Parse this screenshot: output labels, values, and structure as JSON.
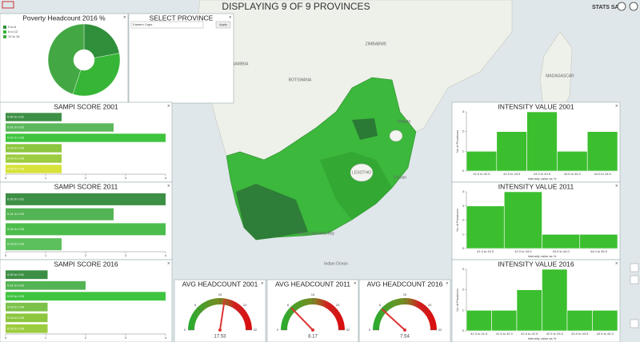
{
  "header": {
    "title": "DISPLAYING 9 OF 9 PROVINCES",
    "logo": "STATS SA"
  },
  "map": {
    "labels": [
      "BOTSWANA",
      "ZIMBABWE",
      "NAMIBIA",
      "LESOTHO",
      "MADAGASCAR",
      "Indian Ocean",
      "Durban",
      "Nelson Mandela Bay",
      "Maputo"
    ]
  },
  "donut": {
    "type": "pie",
    "title": "Poverty Headcount 2016 %",
    "legend": [
      "0 to 6",
      "6 to 12",
      "12 to 14"
    ],
    "values": [
      22,
      33,
      45
    ],
    "colors": [
      "#2f8f3a",
      "#36b536",
      "#43a843"
    ]
  },
  "select": {
    "title": "SELECT PROVINCE",
    "selected": "Eastern Cape",
    "button": "Apply"
  },
  "sampi": [
    {
      "type": "bar",
      "title": "SAMPI SCORE 2001",
      "categories": [
        "0.00 to 0.01",
        "0.01 to 0.02",
        "0.02 to 0.03",
        "0.03 to 0.04",
        "0.04 to 0.05",
        "0.05 to 0.06"
      ],
      "values": [
        1.4,
        2.7,
        4,
        1.4,
        1.4,
        1.4
      ],
      "colors": [
        "#3d8f45",
        "#5cb85c",
        "#3fc43f",
        "#8cc63f",
        "#9ccc3f",
        "#d7e23a"
      ],
      "xlim": [
        0,
        4
      ],
      "xticks": [
        0,
        1,
        2,
        3,
        4
      ]
    },
    {
      "type": "bar",
      "title": "SAMPI SCORE 2011",
      "categories": [
        "0.00 to 0.01",
        "0.01 to 0.02",
        "0.02 to 0.03",
        "0.03 to 0.04"
      ],
      "values": [
        4,
        2.7,
        4,
        1.4
      ],
      "colors": [
        "#3d8f45",
        "#53b453",
        "#4cbc4c",
        "#5cc15c"
      ],
      "xlim": [
        0,
        4
      ],
      "xticks": [
        0,
        1,
        2,
        3,
        4
      ]
    },
    {
      "type": "bar",
      "title": "SAMPI SCORE 2016",
      "categories": [
        "0.00 to 0.01",
        "0.01 to 0.02",
        "0.02 to 0.03",
        "0.03 to 0.04",
        "0.04 to 0.05",
        "0.05 to 0.06"
      ],
      "values": [
        1.05,
        2,
        4,
        1.05,
        1.05,
        1.05
      ],
      "colors": [
        "#3d8f45",
        "#53b453",
        "#3fc43f",
        "#7cc24a",
        "#8cc63f",
        "#9ccc3f"
      ],
      "xlim": [
        0,
        4
      ],
      "xticks": [
        0,
        1,
        2,
        3,
        4
      ]
    }
  ],
  "intensity": [
    {
      "type": "histogram",
      "title": "INTENSITY VALUE 2001",
      "ylabel": "No of Provinces",
      "xlabel": "Intensity value as %",
      "categories": [
        "42.0 to 42.5",
        "42.5 to 43.0",
        "43.0 to 43.5",
        "43.5 to 44.0",
        "44.0 to 44.5"
      ],
      "values": [
        1,
        2,
        3,
        1,
        2
      ],
      "color": "#3cbf2f",
      "ylim": [
        0,
        3
      ],
      "yticks": [
        0,
        1,
        2,
        3
      ]
    },
    {
      "type": "histogram",
      "title": "INTENSITY VALUE 2011",
      "ylabel": "No of Provinces",
      "xlabel": "Intensity value as %",
      "categories": [
        "41.0 to 42.0",
        "42.0 to 43.0",
        "43.0 to 44.0",
        "44.0 to 45.0"
      ],
      "values": [
        3,
        4,
        1,
        1
      ],
      "color": "#3cbf2f",
      "ylim": [
        0,
        4
      ],
      "yticks": [
        0,
        1,
        2,
        3,
        4
      ]
    },
    {
      "type": "histogram",
      "title": "INTENSITY VALUE 2016",
      "ylabel": "No of Provinces",
      "xlabel": "Intensity value as %",
      "categories": [
        "41.0 to 41.5",
        "41.5 to 42.0",
        "42.0 to 42.5",
        "42.5 to 43.0",
        "43.0 to 43.5",
        "43.5 to 44.0"
      ],
      "values": [
        1,
        1,
        2,
        3,
        1,
        1
      ],
      "color": "#3cbf2f",
      "ylim": [
        0,
        3
      ],
      "yticks": [
        0,
        1,
        2,
        3
      ]
    }
  ],
  "gauges": [
    {
      "type": "gauge",
      "title": "AVG HEADCOUNT 2001",
      "value": 17.53,
      "lim": [
        0,
        32
      ],
      "ticks": [
        0,
        8,
        16,
        24,
        32
      ]
    },
    {
      "type": "gauge",
      "title": "AVG HEADCOUNT 2011",
      "value": 8.17,
      "lim": [
        0,
        32
      ],
      "ticks": [
        0,
        8,
        16,
        24,
        32
      ]
    },
    {
      "type": "gauge",
      "title": "AVG HEADCOUNT 2016",
      "value": 7.54,
      "lim": [
        0,
        32
      ],
      "ticks": [
        0,
        8,
        16,
        24,
        32
      ]
    }
  ]
}
